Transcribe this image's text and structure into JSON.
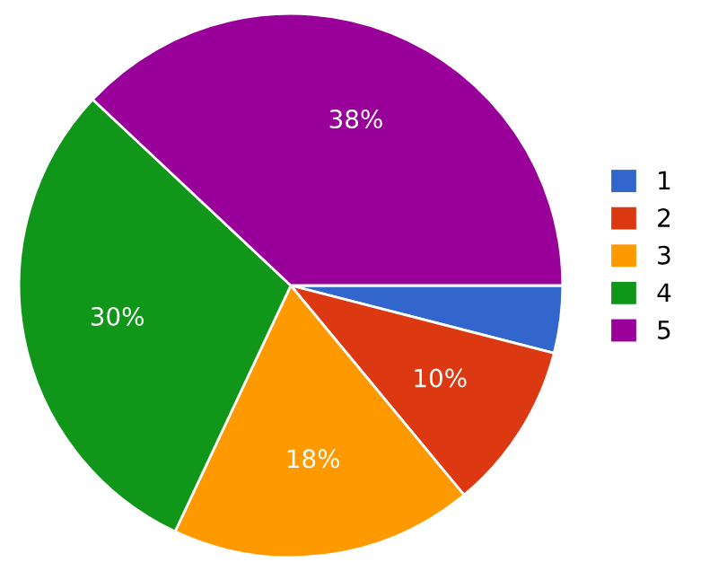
{
  "chart_data": {
    "type": "pie",
    "categories": [
      "1",
      "2",
      "3",
      "4",
      "5"
    ],
    "values": [
      4,
      10,
      18,
      30,
      38
    ],
    "value_labels": [
      null,
      "10%",
      "18%",
      "30%",
      "38%"
    ],
    "colors": [
      "#3366cc",
      "#dc3912",
      "#ff9900",
      "#109618",
      "#990099"
    ],
    "legend": "right"
  }
}
